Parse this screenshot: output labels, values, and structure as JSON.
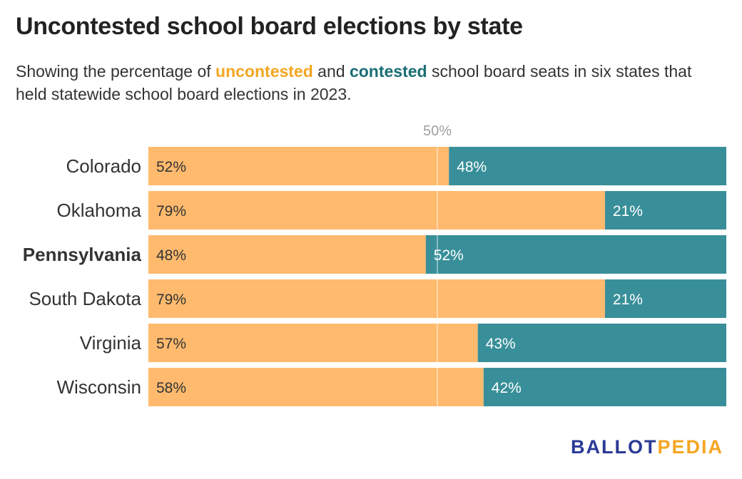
{
  "header": {
    "title": "Uncontested school board elections by state",
    "subtitle_pre": "Showing the percentage of ",
    "subtitle_kw1": "uncontested",
    "subtitle_mid": " and ",
    "subtitle_kw2": "contested",
    "subtitle_post": " school board seats in six states that held statewide school board elections in 2023."
  },
  "brand": {
    "part1": "BALLOT",
    "part2": "PEDIA"
  },
  "colors": {
    "uncontested": "#ffba6e",
    "contested": "#388f99",
    "uncontested_text": "#f5a623",
    "contested_text": "#1a6e75",
    "reference_line": "#ffffff",
    "reference_label": "#a0a0a0"
  },
  "chart_data": {
    "type": "bar",
    "orientation": "horizontal",
    "stacked": true,
    "categories": [
      "Colorado",
      "Oklahoma",
      "Pennsylvania",
      "South Dakota",
      "Virginia",
      "Wisconsin"
    ],
    "highlighted_category": "Pennsylvania",
    "series": [
      {
        "values": [
          52,
          79,
          48,
          79,
          57,
          58
        ],
        "labels": [
          "52%",
          "79%",
          "48%",
          "79%",
          "57%",
          "58%"
        ]
      },
      {
        "values": [
          48,
          21,
          52,
          21,
          43,
          42
        ],
        "labels": [
          "48%",
          "21%",
          "52%",
          "21%",
          "43%",
          "42%"
        ]
      }
    ],
    "xlim": [
      0,
      100
    ],
    "reference_line": {
      "value": 50,
      "label": "50%"
    },
    "grid": false,
    "legend": "inline-subtitle"
  }
}
